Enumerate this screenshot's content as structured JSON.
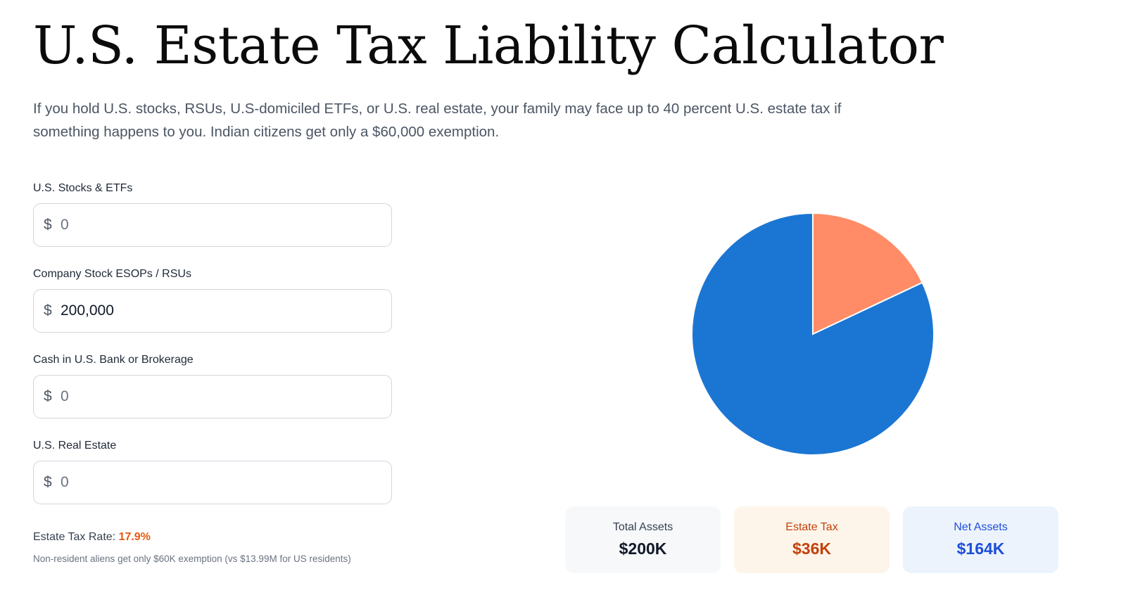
{
  "header": {
    "title": "U.S. Estate Tax Liability Calculator",
    "intro": "If you hold U.S. stocks, RSUs, U.S-domiciled ETFs, or U.S. real estate, your family may face up to 40 percent U.S. estate tax if something happens to you. Indian citizens get only a $60,000 exemption."
  },
  "form": {
    "fields": [
      {
        "label": "U.S. Stocks & ETFs",
        "currency": "$",
        "value": "",
        "placeholder": "0"
      },
      {
        "label": "Company Stock ESOPs / RSUs",
        "currency": "$",
        "value": "200,000",
        "placeholder": "0"
      },
      {
        "label": "Cash in U.S. Bank or Brokerage",
        "currency": "$",
        "value": "",
        "placeholder": "0"
      },
      {
        "label": "U.S. Real Estate",
        "currency": "$",
        "value": "",
        "placeholder": "0"
      }
    ],
    "rate_label": "Estate Tax Rate:",
    "rate_value": "17.9%",
    "note": "Non-resident aliens get only $60K exemption (vs $13.99M for US residents)"
  },
  "summary": {
    "total": {
      "label": "Total Assets",
      "value": "$200K"
    },
    "tax": {
      "label": "Estate Tax",
      "value": "$36K"
    },
    "net": {
      "label": "Net Assets",
      "value": "$164K"
    }
  },
  "chart_data": {
    "type": "pie",
    "slices": [
      {
        "value": 36,
        "color": "#ff8c66"
      },
      {
        "value": 164,
        "color": "#1b76d3"
      }
    ]
  }
}
